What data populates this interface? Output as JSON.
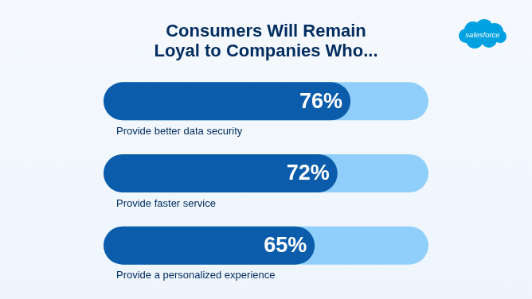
{
  "chart_data": {
    "type": "bar",
    "orientation": "horizontal",
    "title": [
      "Consumers Will Remain",
      "Loyal to Companies Who..."
    ],
    "annotations": [
      "salesforce"
    ],
    "categories": [
      "Provide better data security",
      "Provide faster service",
      "Provide a personalized experience"
    ],
    "values": [
      76,
      72,
      65
    ],
    "value_labels": [
      "76%",
      "72%",
      "65%"
    ],
    "color": "#0b5cab",
    "xlim": [
      0,
      100
    ],
    "grid": false,
    "data_labels": true,
    "tick_labels": "y"
  }
}
